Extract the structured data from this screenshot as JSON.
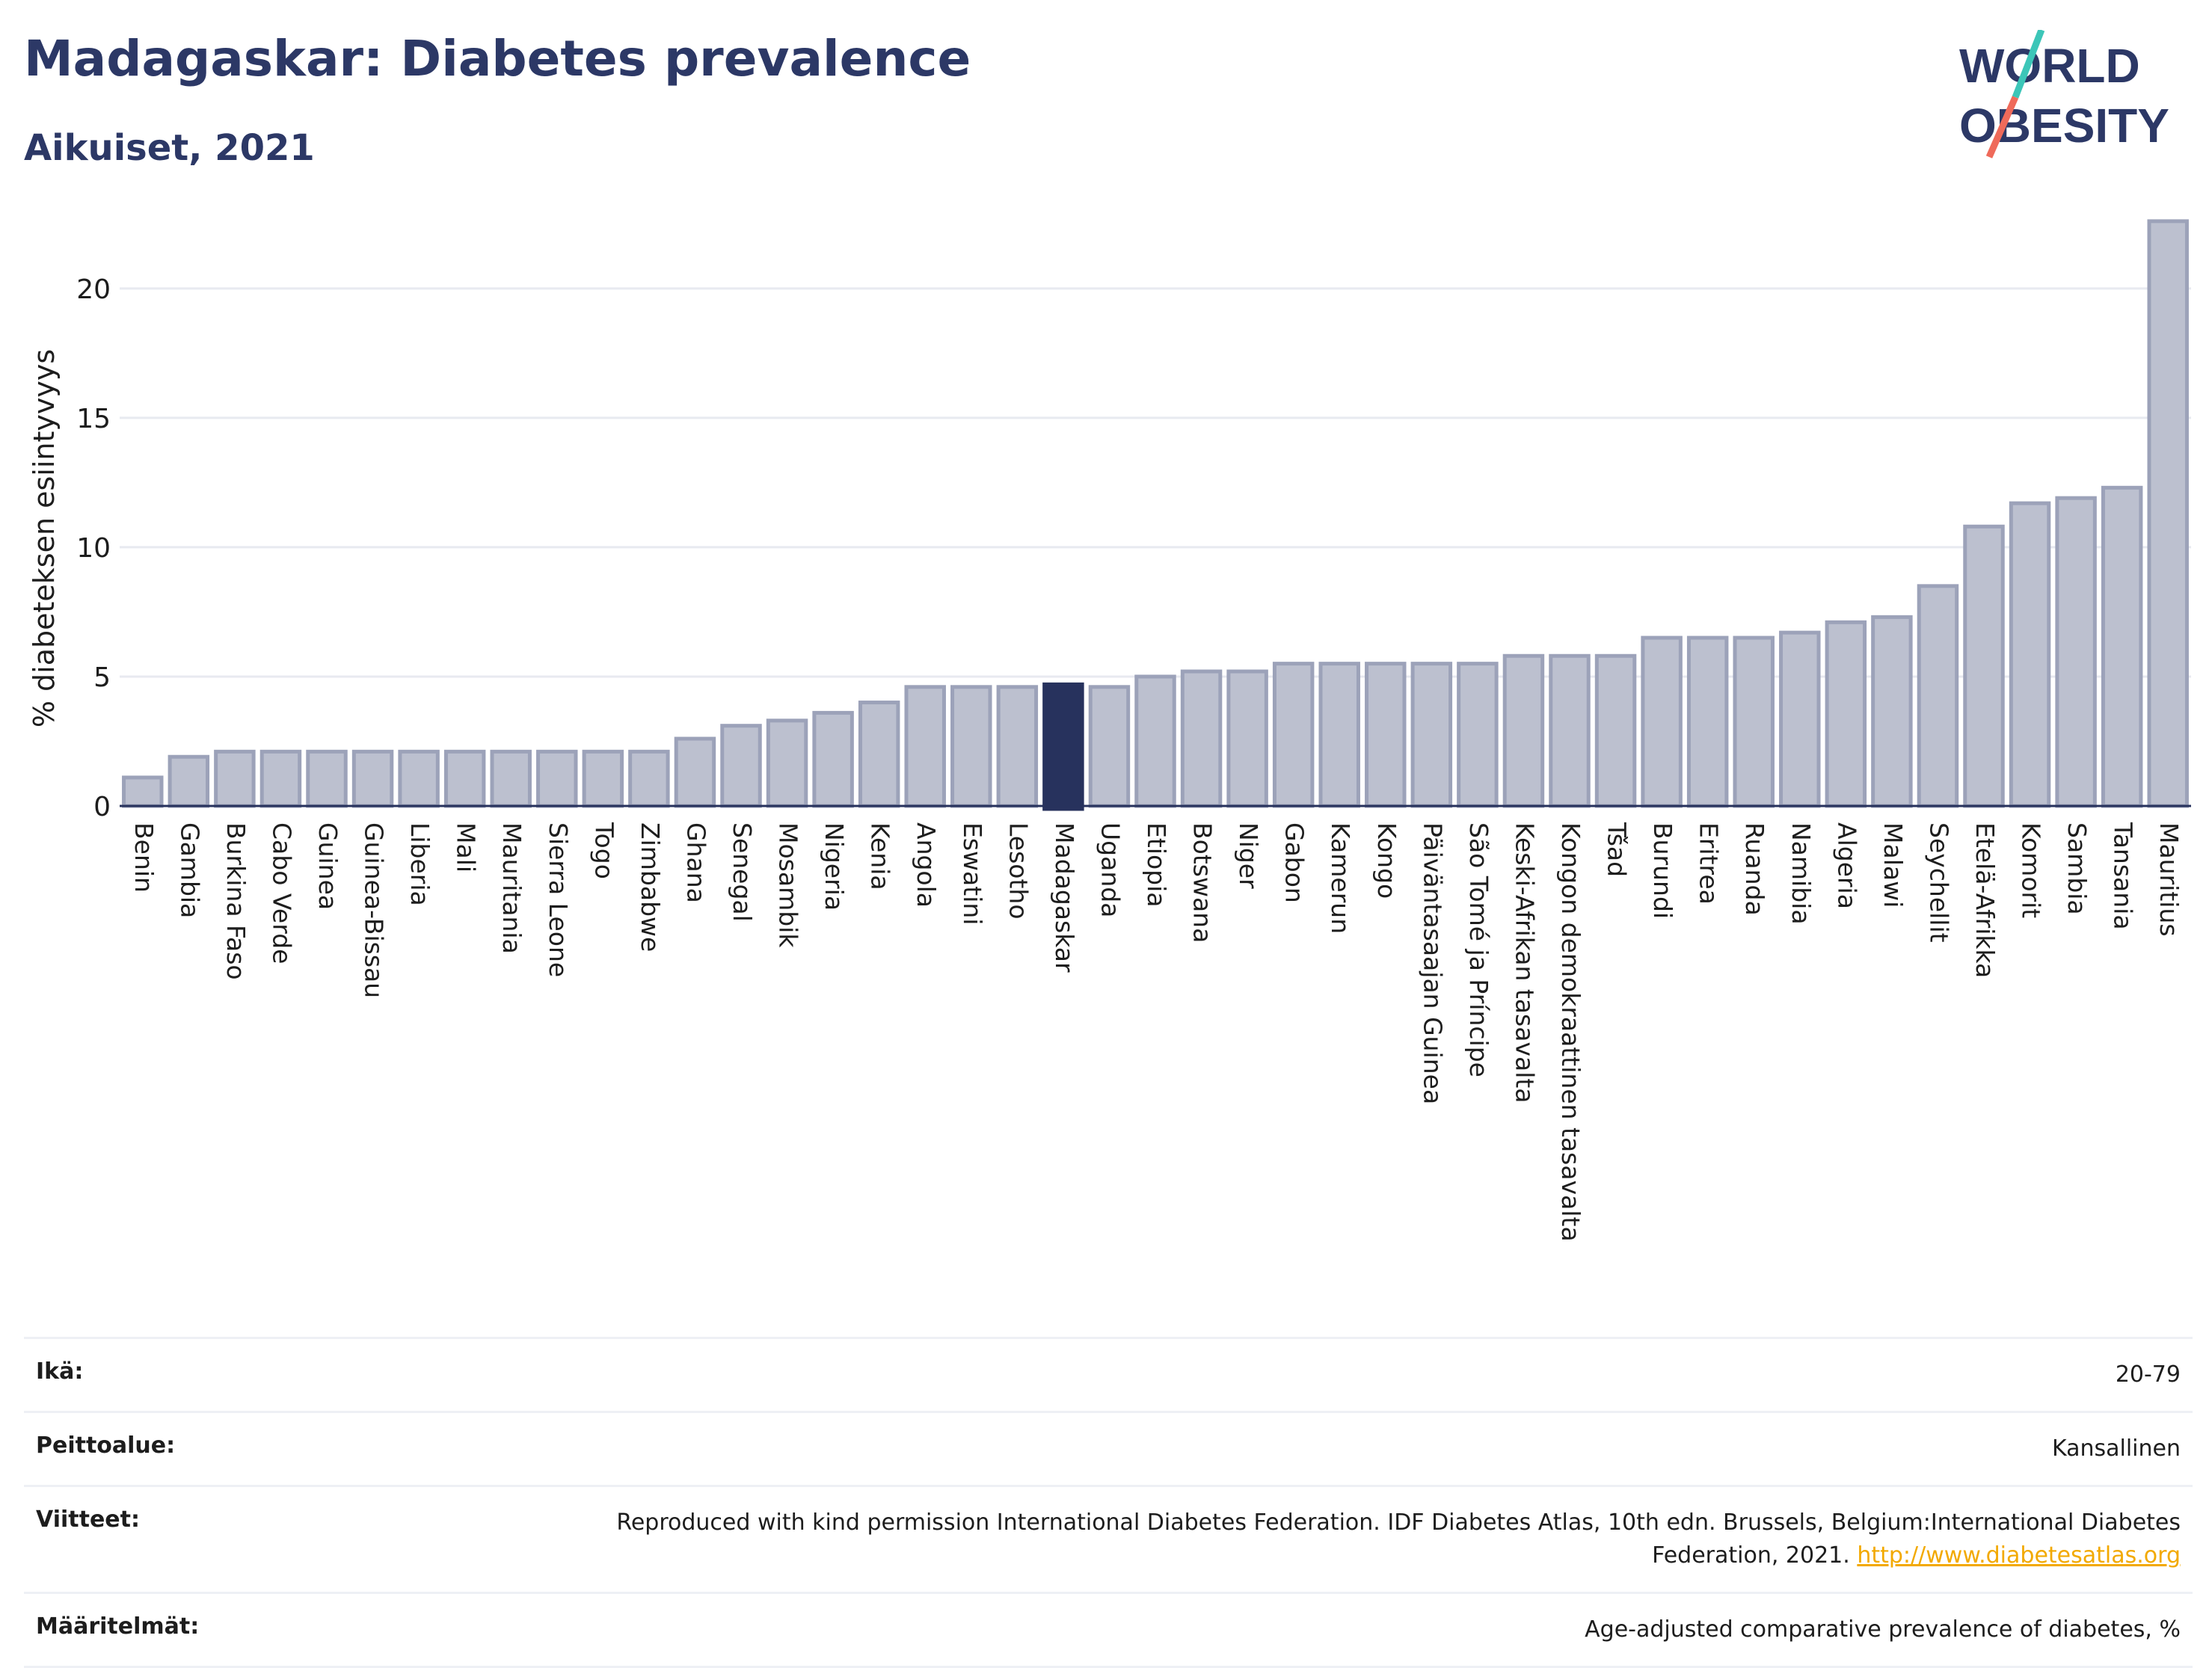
{
  "header": {
    "title": "Madagaskar: Diabetes prevalence",
    "subtitle": "Aikuiset, 2021"
  },
  "logo": {
    "line1": "WORLD",
    "line2": "OBESITY"
  },
  "colors": {
    "bar": "#bcc0cf",
    "bar_stroke": "#9ca2b9",
    "highlight": "#27325d",
    "grid": "#e8eaf0",
    "axis": "#27325d"
  },
  "chart_data": {
    "type": "bar",
    "ylabel": "% diabeteksen esiintyvyys",
    "ylim": [
      0,
      23
    ],
    "yticks": [
      0,
      5,
      10,
      15,
      20
    ],
    "highlight": "Madagaskar",
    "categories": [
      "Benin",
      "Gambia",
      "Burkina Faso",
      "Cabo Verde",
      "Guinea",
      "Guinea-Bissau",
      "Liberia",
      "Mali",
      "Mauritania",
      "Sierra Leone",
      "Togo",
      "Zimbabwe",
      "Ghana",
      "Senegal",
      "Mosambik",
      "Nigeria",
      "Kenia",
      "Angola",
      "Eswatini",
      "Lesotho",
      "Madagaskar",
      "Uganda",
      "Etiopia",
      "Botswana",
      "Niger",
      "Gabon",
      "Kamerun",
      "Kongo",
      "Päiväntasaajan Guinea",
      "São Tomé ja Príncipe",
      "Keski-Afrikan tasavalta",
      "Kongon demokraattinen tasavalta",
      "Tšad",
      "Burundi",
      "Eritrea",
      "Ruanda",
      "Namibia",
      "Algeria",
      "Malawi",
      "Seychellit",
      "Etelä-Afrikka",
      "Komorit",
      "Sambia",
      "Tansania",
      "Mauritius"
    ],
    "values": [
      1.1,
      1.9,
      2.1,
      2.1,
      2.1,
      2.1,
      2.1,
      2.1,
      2.1,
      2.1,
      2.1,
      2.1,
      2.6,
      3.1,
      3.3,
      3.6,
      4.0,
      4.6,
      4.6,
      4.6,
      4.7,
      4.6,
      5.0,
      5.2,
      5.2,
      5.5,
      5.5,
      5.5,
      5.5,
      5.5,
      5.8,
      5.8,
      5.8,
      6.5,
      6.5,
      6.5,
      6.7,
      7.1,
      7.3,
      8.5,
      10.8,
      11.7,
      11.9,
      12.3,
      22.6
    ]
  },
  "meta": [
    {
      "key": "Ikä:",
      "value": "20-79"
    },
    {
      "key": "Peittoalue:",
      "value": "Kansallinen"
    },
    {
      "key": "Viitteet:",
      "value": "Reproduced with kind permission International Diabetes Federation.  IDF Diabetes Atlas, 10th edn. Brussels, Belgium:International Diabetes Federation, 2021. ",
      "link": "http://www.diabetesatlas.org"
    },
    {
      "key": "Määritelmät:",
      "value": "Age-adjusted comparative prevalence of diabetes, %"
    }
  ]
}
